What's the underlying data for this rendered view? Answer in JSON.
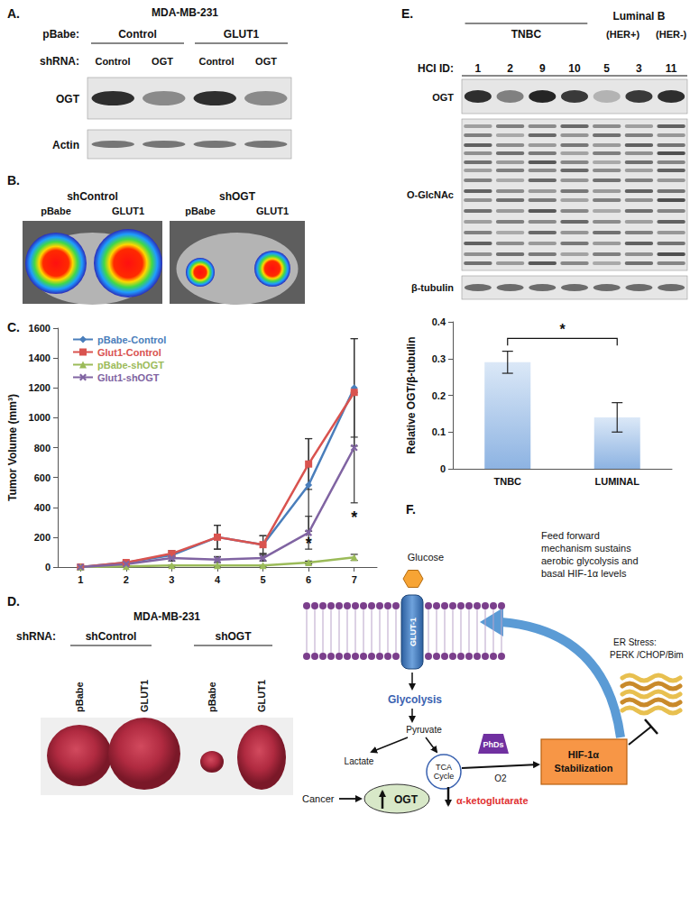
{
  "chart_data": [
    {
      "type": "line",
      "ylabel": "Tumor Volume (mm³)",
      "categories": [
        "1",
        "2",
        "3",
        "4",
        "5",
        "6",
        "7"
      ],
      "series": [
        {
          "name": "pBabe-Control",
          "color": "#4a7ebb",
          "marker": "diamond",
          "values": [
            0,
            30,
            80,
            200,
            150,
            550,
            1200
          ],
          "errors": [
            null,
            10,
            20,
            80,
            60,
            310,
            330
          ]
        },
        {
          "name": "Glut1-Control",
          "color": "#d9534f",
          "marker": "square",
          "values": [
            0,
            30,
            90,
            200,
            150,
            690,
            1170
          ],
          "errors": [
            null,
            10,
            20,
            80,
            60,
            170,
            360
          ]
        },
        {
          "name": "pBabe-shOGT",
          "color": "#9bbb59",
          "marker": "triangle",
          "values": [
            0,
            5,
            10,
            10,
            10,
            30,
            65
          ],
          "errors": [
            null,
            2,
            5,
            5,
            5,
            10,
            20
          ]
        },
        {
          "name": "Glut1-shOGT",
          "color": "#8064a2",
          "marker": "x",
          "values": [
            0,
            20,
            60,
            50,
            60,
            230,
            800
          ],
          "errors": [
            null,
            10,
            20,
            20,
            20,
            110,
            370
          ]
        }
      ],
      "ylim": [
        0,
        1600
      ],
      "yticks": [
        0,
        200,
        400,
        600,
        800,
        1000,
        1200,
        1400,
        1600
      ],
      "grid": false,
      "legend": "top-left",
      "annotations": [
        {
          "text": "*",
          "x": "6",
          "y": 160
        },
        {
          "text": "*",
          "x": "7",
          "y": 330
        }
      ]
    },
    {
      "type": "bar",
      "ylabel": "Relative OGT/β-tubulin",
      "categories": [
        "TNBC",
        "LUMINAL"
      ],
      "values": [
        0.29,
        0.14
      ],
      "errors": [
        0.03,
        0.04
      ],
      "color": "#8db3e2",
      "ylim": [
        0,
        0.4
      ],
      "yticks": [
        0,
        0.1,
        0.2,
        0.3,
        0.4
      ],
      "grid": false,
      "significance": {
        "text": "*",
        "from": "TNBC",
        "to": "LUMINAL",
        "y": 0.355
      }
    }
  ],
  "panels": {
    "A": {
      "label": "A.",
      "title": "MDA-MB-231",
      "vector_label": "pBabe:",
      "vectors": [
        "Control",
        "GLUT1"
      ],
      "shrna_label": "shRNA:",
      "lanes": [
        "Control",
        "OGT",
        "Control",
        "OGT"
      ],
      "blots": [
        "OGT",
        "Actin"
      ]
    },
    "B": {
      "label": "B.",
      "groups": [
        {
          "name": "shControl",
          "lanes": [
            "pBabe",
            "GLUT1"
          ]
        },
        {
          "name": "shOGT",
          "lanes": [
            "pBabe",
            "GLUT1"
          ]
        }
      ]
    },
    "C": {
      "label": "C."
    },
    "D": {
      "label": "D.",
      "title": "MDA-MB-231",
      "shrna_label": "shRNA:",
      "groups": [
        "shControl",
        "shOGT"
      ],
      "lanes": [
        "pBabe",
        "GLUT1",
        "pBabe",
        "GLUT1"
      ]
    },
    "E": {
      "label": "E.",
      "id_label": "HCI ID:",
      "groups": [
        {
          "name": "TNBC",
          "ids": [
            1,
            2,
            9,
            10
          ]
        },
        {
          "name": "Luminal B",
          "subgroups": [
            {
              "name": "(HER+)",
              "ids": [
                5,
                3
              ]
            },
            {
              "name": "(HER-)",
              "ids": [
                11
              ]
            }
          ]
        }
      ],
      "blots": [
        "OGT",
        "O-GlcNAc",
        "β-tubulin"
      ]
    },
    "F": {
      "label": "F.",
      "glucose": "Glucose",
      "transporter": "GLUT-1",
      "glycolysis": "Glycolysis",
      "pyruvate": "Pyruvate",
      "lactate": "Lactate",
      "tca": [
        "TCA",
        "Cycle"
      ],
      "phd": "PhDs",
      "oxygen": "O2",
      "hif": [
        "HIF-1α",
        "Stabilization"
      ],
      "feed_forward": [
        "Feed forward",
        "mechanism sustains",
        "aerobic glycolysis and",
        "basal HIF-1α levels"
      ],
      "er_stress": [
        "ER Stress:",
        "PERK /CHOP/Bim"
      ],
      "cancer": "Cancer",
      "ogt": "OGT",
      "akg": "α-ketoglutarate"
    }
  }
}
